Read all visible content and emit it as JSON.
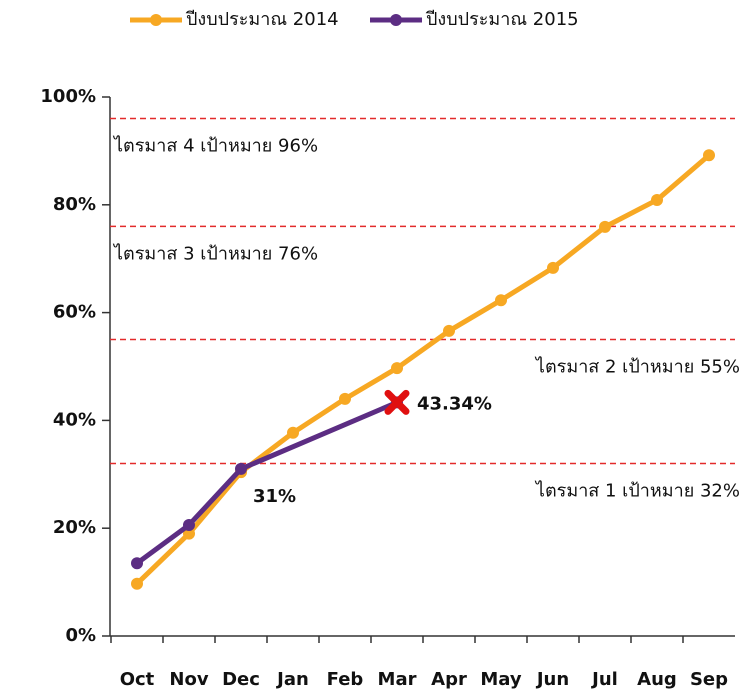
{
  "chart_data": {
    "type": "line",
    "categories": [
      "Oct",
      "Nov",
      "Dec",
      "Jan",
      "Feb",
      "Mar",
      "Apr",
      "May",
      "Jun",
      "Jul",
      "Aug",
      "Sep"
    ],
    "series": [
      {
        "name": "ปีงบประมาณ 2014",
        "color": "#f7a823",
        "values": [
          9.7,
          19,
          30.4,
          37.7,
          44,
          49.7,
          56.6,
          62.3,
          68.3,
          75.9,
          80.9,
          89.2
        ]
      },
      {
        "name": "ปีงบประมาณ 2015",
        "color": "#5c2d83",
        "connect_nulls": true,
        "values": [
          13.5,
          20.6,
          31,
          null,
          null,
          43.34,
          null,
          null,
          null,
          null,
          null,
          null
        ],
        "value_labels": [
          null,
          null,
          "31%",
          null,
          null,
          "43.34%",
          null,
          null,
          null,
          null,
          null,
          null
        ]
      }
    ],
    "reference_lines": [
      {
        "value": 96,
        "label": "ไตรมาส 4 เป้าหมาย 96%",
        "side": "left",
        "color": "#e32b2b"
      },
      {
        "value": 76,
        "label": "ไตรมาส 3 เป้าหมาย 76%",
        "side": "left",
        "color": "#e32b2b"
      },
      {
        "value": 55,
        "label": "ไตรมาส 2 เป้าหมาย 55%",
        "side": "right",
        "color": "#e32b2b"
      },
      {
        "value": 32,
        "label": "ไตรมาส 1 เป้าหมาย 32%",
        "side": "right",
        "color": "#e32b2b"
      }
    ],
    "ylim": [
      0,
      100
    ],
    "yticks": [
      {
        "value": 0,
        "label": "0%"
      },
      {
        "value": 20,
        "label": "20%"
      },
      {
        "value": 40,
        "label": "40%"
      },
      {
        "value": 60,
        "label": "60%"
      },
      {
        "value": 80,
        "label": "80%"
      },
      {
        "value": 100,
        "label": "100%"
      }
    ],
    "legend": "top"
  }
}
